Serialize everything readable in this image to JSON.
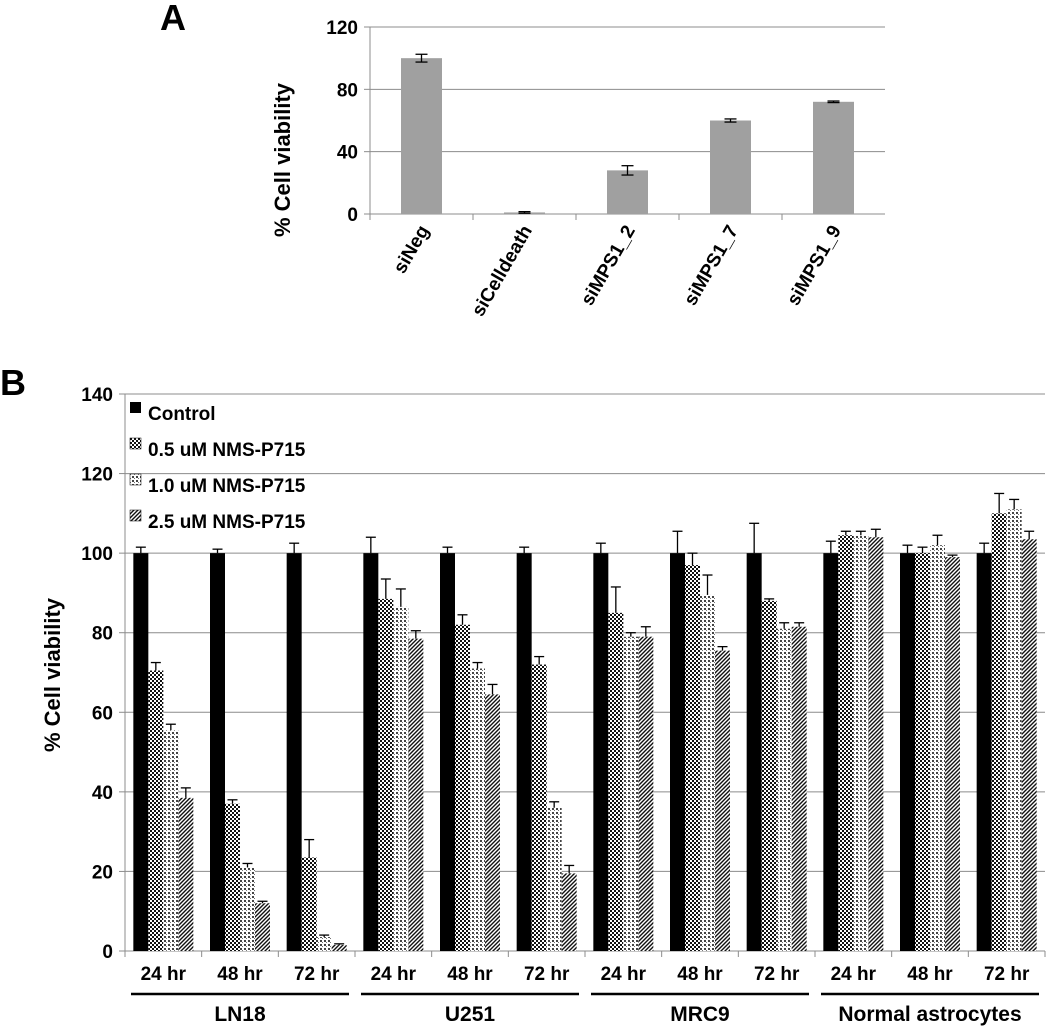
{
  "chart_data": [
    {
      "type": "bar",
      "panel_label": "A",
      "title": "",
      "xlabel": "",
      "ylabel": "% Cell viability",
      "ylim": [
        0,
        120
      ],
      "yticks": [
        0,
        40,
        80,
        120
      ],
      "grid": true,
      "categories": [
        "siNeg",
        "siCelldeath",
        "siMPS1_2",
        "siMPS1_7",
        "siMPS1_9"
      ],
      "values": [
        100,
        1,
        28,
        60,
        72
      ],
      "errors": [
        2.5,
        0.5,
        3,
        1,
        0.5
      ],
      "bar_color": "#a0a0a0"
    },
    {
      "type": "bar",
      "panel_label": "B",
      "title": "",
      "xlabel": "",
      "ylabel": "% Cell viability",
      "ylim": [
        0,
        140
      ],
      "yticks": [
        0,
        20,
        40,
        60,
        80,
        100,
        120,
        140
      ],
      "grid": true,
      "legend_position": "top-left",
      "categories": [
        "24 hr",
        "48 hr",
        "72 hr",
        "24 hr",
        "48 hr",
        "72 hr",
        "24 hr",
        "48 hr",
        "72 hr",
        "24 hr",
        "48 hr",
        "72 hr"
      ],
      "groups": [
        {
          "label": "LN18",
          "start": 0,
          "end": 2
        },
        {
          "label": "U251",
          "start": 3,
          "end": 5
        },
        {
          "label": "MRC9",
          "start": 6,
          "end": 8
        },
        {
          "label": "Normal astrocytes",
          "start": 9,
          "end": 11
        }
      ],
      "series": [
        {
          "name": "Control",
          "pattern": "solid",
          "values": [
            100,
            100,
            100,
            100,
            100,
            100,
            100,
            100,
            100,
            100,
            100,
            100
          ],
          "errors": [
            1.5,
            1,
            2.5,
            4,
            1.5,
            1.5,
            2.5,
            5.5,
            7.5,
            3,
            2,
            2.5
          ]
        },
        {
          "name": "0.5 uM NMS-P715",
          "pattern": "checker",
          "values": [
            70.5,
            37,
            23.5,
            88.5,
            82,
            72,
            85,
            97,
            88,
            104.5,
            100,
            110
          ],
          "errors": [
            2,
            1,
            4.5,
            5,
            2.5,
            2,
            6.5,
            3,
            0.5,
            1,
            1.5,
            5
          ]
        },
        {
          "name": "1.0 uM NMS-P715",
          "pattern": "dots",
          "values": [
            55.5,
            21,
            3.5,
            86.5,
            71,
            36,
            79,
            89.5,
            81,
            104.5,
            102,
            111
          ],
          "errors": [
            1.5,
            1,
            0.5,
            4.5,
            1.5,
            1.5,
            1,
            5,
            1.5,
            1,
            2.5,
            2.5
          ]
        },
        {
          "name": "2.5 uM NMS-P715",
          "pattern": "diagonal",
          "values": [
            38.5,
            12,
            1.5,
            78.5,
            64.5,
            19.5,
            79,
            75.5,
            81.5,
            104,
            99,
            103.5
          ],
          "errors": [
            2.5,
            0.5,
            0.3,
            2,
            2.5,
            2,
            2.5,
            1,
            1,
            2,
            0.5,
            2
          ]
        }
      ]
    }
  ]
}
